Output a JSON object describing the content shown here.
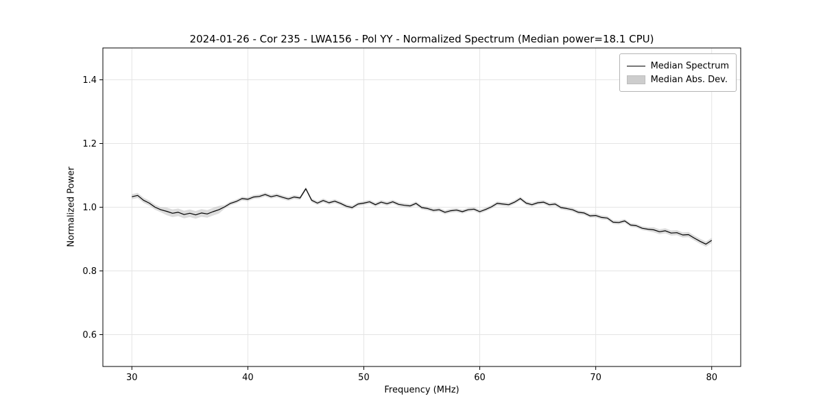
{
  "chart_data": {
    "type": "line",
    "title": "2024-01-26 - Cor 235 - LWA156 - Pol YY - Normalized Spectrum (Median power=18.1 CPU)",
    "xlabel": "Frequency (MHz)",
    "ylabel": "Normalized Power",
    "xlim": [
      27.5,
      82.5
    ],
    "ylim": [
      0.5,
      1.5
    ],
    "x_ticks": [
      30,
      40,
      50,
      60,
      70,
      80
    ],
    "x_tick_labels": [
      "30",
      "40",
      "50",
      "60",
      "70",
      "80"
    ],
    "y_ticks": [
      0.6,
      0.8,
      1.0,
      1.2,
      1.4
    ],
    "y_tick_labels": [
      "0.6",
      "0.8",
      "1.0",
      "1.2",
      "1.4"
    ],
    "grid": true,
    "legend": {
      "position": "upper right",
      "entries": [
        {
          "label": "Median Spectrum",
          "type": "line",
          "color": "#000000"
        },
        {
          "label": "Median Abs. Dev.",
          "type": "patch",
          "color": "#cdcdcd"
        }
      ]
    },
    "series": [
      {
        "name": "Median Spectrum",
        "style": "line",
        "color": "#000000"
      },
      {
        "name": "Median Abs. Dev.",
        "style": "band",
        "color": "#bfbfbf"
      }
    ],
    "x": [
      30,
      30.5,
      31,
      31.5,
      32,
      32.5,
      33,
      33.5,
      34,
      34.5,
      35,
      35.5,
      36,
      36.5,
      37,
      37.5,
      38,
      38.5,
      39,
      39.5,
      40,
      40.5,
      41,
      41.5,
      42,
      42.5,
      43,
      43.5,
      44,
      44.5,
      45,
      45.5,
      46,
      46.5,
      47,
      47.5,
      48,
      48.5,
      49,
      49.5,
      50,
      50.5,
      51,
      51.5,
      52,
      52.5,
      53,
      53.5,
      54,
      54.5,
      55,
      55.5,
      56,
      56.5,
      57,
      57.5,
      58,
      58.5,
      59,
      59.5,
      60,
      60.5,
      61,
      61.5,
      62,
      62.5,
      63,
      63.5,
      64,
      64.5,
      65,
      65.5,
      66,
      66.5,
      67,
      67.5,
      68,
      68.5,
      69,
      69.5,
      70,
      70.5,
      71,
      71.5,
      72,
      72.5,
      73,
      73.5,
      74,
      74.5,
      75,
      75.5,
      76,
      76.5,
      77,
      77.5,
      78,
      78.5,
      79,
      79.5,
      80
    ],
    "median": [
      1.033,
      1.037,
      1.022,
      1.013,
      1.0,
      0.992,
      0.987,
      0.981,
      0.984,
      0.977,
      0.981,
      0.976,
      0.982,
      0.979,
      0.986,
      0.992,
      1.001,
      1.012,
      1.018,
      1.027,
      1.025,
      1.032,
      1.034,
      1.04,
      1.033,
      1.037,
      1.031,
      1.026,
      1.032,
      1.029,
      1.058,
      1.022,
      1.013,
      1.021,
      1.014,
      1.019,
      1.012,
      1.003,
      0.999,
      1.01,
      1.013,
      1.017,
      1.008,
      1.016,
      1.011,
      1.017,
      1.009,
      1.006,
      1.004,
      1.012,
      0.999,
      0.996,
      0.99,
      0.992,
      0.984,
      0.989,
      0.991,
      0.986,
      0.992,
      0.994,
      0.986,
      0.993,
      1.001,
      1.012,
      1.01,
      1.008,
      1.016,
      1.027,
      1.013,
      1.008,
      1.014,
      1.016,
      1.008,
      1.01,
      0.999,
      0.996,
      0.992,
      0.984,
      0.982,
      0.973,
      0.974,
      0.968,
      0.966,
      0.953,
      0.952,
      0.957,
      0.944,
      0.942,
      0.934,
      0.931,
      0.929,
      0.923,
      0.926,
      0.919,
      0.92,
      0.913,
      0.914,
      0.903,
      0.893,
      0.884,
      0.896
    ],
    "mad": [
      0.008,
      0.008,
      0.008,
      0.008,
      0.008,
      0.008,
      0.012,
      0.012,
      0.012,
      0.012,
      0.012,
      0.012,
      0.012,
      0.012,
      0.012,
      0.012,
      0.006,
      0.006,
      0.006,
      0.006,
      0.006,
      0.006,
      0.006,
      0.006,
      0.006,
      0.006,
      0.006,
      0.006,
      0.006,
      0.006,
      0.006,
      0.006,
      0.006,
      0.006,
      0.006,
      0.006,
      0.006,
      0.006,
      0.006,
      0.006,
      0.006,
      0.006,
      0.006,
      0.006,
      0.006,
      0.006,
      0.006,
      0.006,
      0.006,
      0.006,
      0.006,
      0.006,
      0.006,
      0.006,
      0.006,
      0.006,
      0.006,
      0.006,
      0.006,
      0.006,
      0.006,
      0.006,
      0.006,
      0.006,
      0.006,
      0.006,
      0.006,
      0.006,
      0.006,
      0.006,
      0.006,
      0.006,
      0.006,
      0.006,
      0.006,
      0.006,
      0.006,
      0.006,
      0.006,
      0.006,
      0.006,
      0.006,
      0.006,
      0.006,
      0.006,
      0.006,
      0.006,
      0.006,
      0.006,
      0.006,
      0.008,
      0.008,
      0.008,
      0.008,
      0.008,
      0.008,
      0.008,
      0.008,
      0.008,
      0.008,
      0.008
    ]
  }
}
